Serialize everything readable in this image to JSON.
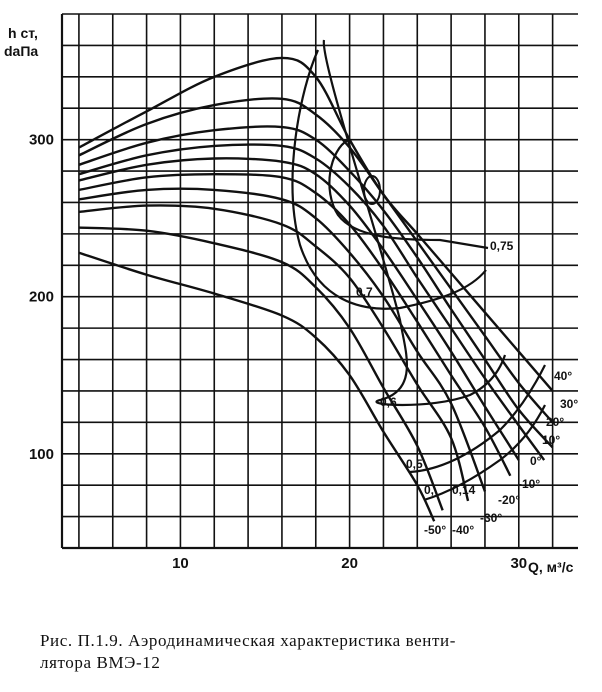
{
  "chart_data": {
    "type": "line",
    "ylabel_line1": "h ст,",
    "ylabel_line2": "daПа",
    "xlabel": "Q, м³/с",
    "x_ticks": [
      "10",
      "20",
      "30"
    ],
    "y_ticks": [
      "100",
      "200",
      "300"
    ],
    "xlim": [
      3,
      33.5
    ],
    "ylim": [
      40,
      380
    ],
    "grid": true,
    "series": [
      {
        "name": "40°",
        "x": [
          4,
          8,
          12,
          16,
          18,
          20,
          22,
          24,
          26,
          28,
          30,
          32
        ],
        "y": [
          295,
          318,
          340,
          352,
          340,
          300,
          265,
          240,
          215,
          190,
          165,
          140
        ]
      },
      {
        "name": "30°",
        "x": [
          4,
          8,
          12,
          16,
          18,
          20,
          22,
          24,
          26,
          28,
          30,
          32
        ],
        "y": [
          290,
          310,
          322,
          326,
          316,
          295,
          265,
          235,
          205,
          175,
          145,
          120
        ]
      },
      {
        "name": "20°",
        "x": [
          4,
          8,
          12,
          16,
          18,
          20,
          22,
          24,
          26,
          28,
          30,
          32
        ],
        "y": [
          284,
          298,
          306,
          308,
          300,
          280,
          255,
          225,
          192,
          160,
          128,
          104
        ]
      },
      {
        "name": "10°",
        "x": [
          4,
          8,
          12,
          16,
          18,
          20,
          22,
          24,
          26,
          28,
          30,
          31.5
        ],
        "y": [
          278,
          290,
          296,
          296,
          288,
          270,
          245,
          212,
          180,
          148,
          118,
          96
        ]
      },
      {
        "name": "0°",
        "x": [
          4,
          8,
          12,
          16,
          18,
          20,
          22,
          24,
          26,
          28,
          30
        ],
        "y": [
          274,
          284,
          288,
          286,
          278,
          258,
          230,
          198,
          165,
          130,
          96
        ]
      },
      {
        "name": "-10°",
        "x": [
          4,
          8,
          12,
          16,
          18,
          20,
          22,
          24,
          26,
          28,
          29.5
        ],
        "y": [
          268,
          276,
          278,
          276,
          266,
          246,
          217,
          184,
          150,
          117,
          86
        ]
      },
      {
        "name": "-20°",
        "x": [
          4,
          8,
          12,
          16,
          18,
          20,
          22,
          24,
          26,
          28
        ],
        "y": [
          262,
          268,
          268,
          262,
          250,
          228,
          200,
          165,
          132,
          76
        ]
      },
      {
        "name": "-30°",
        "x": [
          4,
          8,
          12,
          16,
          18,
          20,
          22,
          24,
          26,
          27
        ],
        "y": [
          254,
          258,
          256,
          246,
          232,
          212,
          180,
          144,
          110,
          70
        ]
      },
      {
        "name": "-40°",
        "x": [
          4,
          8,
          12,
          16,
          18,
          20,
          22,
          24,
          25.5
        ],
        "y": [
          244,
          242,
          234,
          222,
          206,
          180,
          142,
          105,
          64
        ]
      },
      {
        "name": "-50°",
        "x": [
          4,
          8,
          12,
          16,
          18,
          20,
          22,
          24,
          25
        ],
        "y": [
          228,
          214,
          202,
          188,
          174,
          150,
          114,
          80,
          57
        ]
      }
    ],
    "efficiency_labels": [
      "0,75",
      "0,7",
      "0,6",
      "0,5",
      "0,14",
      "0,"
    ],
    "angle_labels": [
      "40°",
      "30°",
      "20°",
      "10°",
      "0°",
      "-10°",
      "-20°",
      "-30°",
      "-40°",
      "-50°"
    ]
  },
  "caption": {
    "line1": "Рис. П.1.9. Аэродинамическая характеристика венти-",
    "line2": "лятора ВМЭ-12"
  }
}
